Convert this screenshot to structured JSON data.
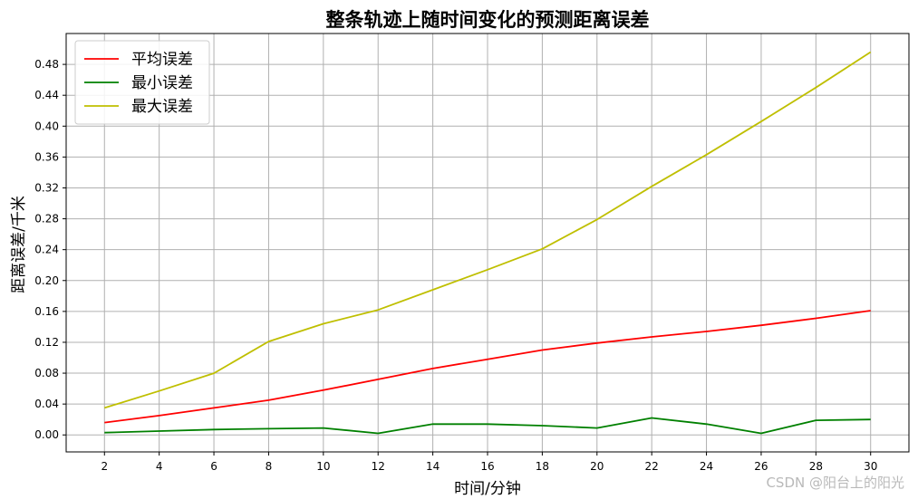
{
  "chart_data": {
    "type": "line",
    "title": "整条轨迹上随时间变化的预测距离误差",
    "xlabel": "时间/分钟",
    "ylabel": "距离误差/千米",
    "x": [
      2,
      4,
      6,
      8,
      10,
      12,
      14,
      16,
      18,
      20,
      22,
      24,
      26,
      28,
      30
    ],
    "xticks": [
      "2",
      "4",
      "6",
      "8",
      "10",
      "12",
      "14",
      "16",
      "18",
      "20",
      "22",
      "24",
      "26",
      "28",
      "30"
    ],
    "yticks": [
      "0.00",
      "0.04",
      "0.08",
      "0.12",
      "0.16",
      "0.20",
      "0.24",
      "0.28",
      "0.32",
      "0.36",
      "0.40",
      "0.44",
      "0.48"
    ],
    "xlim": [
      0.6,
      31.4
    ],
    "ylim": [
      -0.022,
      0.52
    ],
    "grid": true,
    "legend_position": "top-left",
    "series": [
      {
        "name": "平均误差",
        "color": "#ff0000",
        "values": [
          0.016,
          0.025,
          0.035,
          0.045,
          0.058,
          0.072,
          0.086,
          0.098,
          0.11,
          0.119,
          0.127,
          0.134,
          0.142,
          0.151,
          0.161
        ]
      },
      {
        "name": "最小误差",
        "color": "#008000",
        "values": [
          0.003,
          0.005,
          0.007,
          0.008,
          0.009,
          0.002,
          0.014,
          0.014,
          0.012,
          0.009,
          0.022,
          0.014,
          0.002,
          0.019,
          0.02
        ]
      },
      {
        "name": "最大误差",
        "color": "#bfbf00",
        "values": [
          0.035,
          0.057,
          0.08,
          0.121,
          0.144,
          0.162,
          0.188,
          0.214,
          0.241,
          0.279,
          0.322,
          0.363,
          0.406,
          0.45,
          0.496
        ]
      }
    ]
  },
  "watermark": "CSDN @阳台上的阳光"
}
